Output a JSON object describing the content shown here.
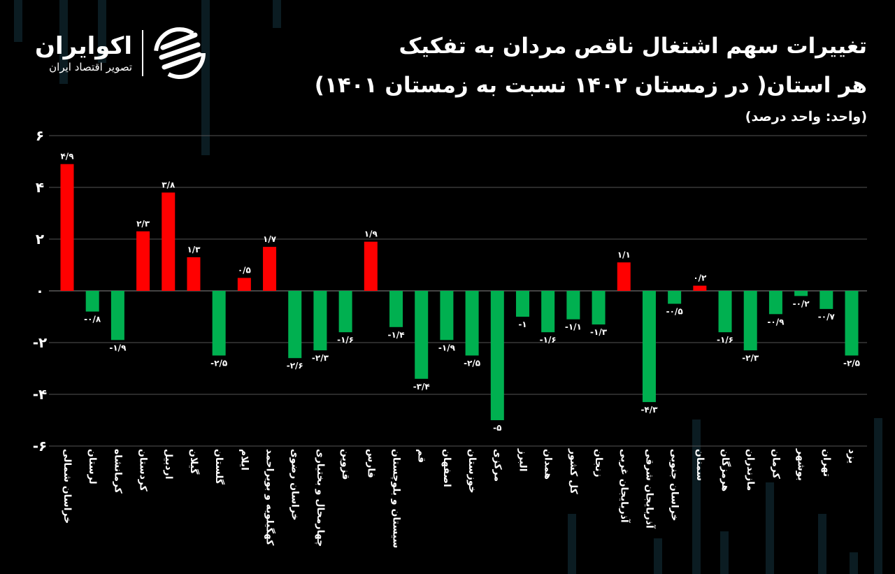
{
  "logo": {
    "name": "اکوایران",
    "tagline": "تصویر اقتصاد ایران"
  },
  "chart_data": {
    "type": "bar",
    "title_line1": "تغییرات سهم اشتغال ناقص مردان به تفکیک",
    "title_line2": "هر استان( در زمستان ۱۴۰۲ نسبت به زمستان ۱۴۰۱)",
    "unit": "(واحد: واحد درصد)",
    "ylim": [
      -6,
      6
    ],
    "yticks": [
      6,
      4,
      2,
      0,
      -2,
      -4,
      -6
    ],
    "ytick_labels": [
      "۶",
      "۴",
      "۲",
      "۰",
      "-۲",
      "-۴",
      "-۶"
    ],
    "grid": true,
    "colors": {
      "positive": "#ff0000",
      "negative": "#00b050"
    },
    "categories": [
      "خراسان شمالی",
      "لرستان",
      "کرمانشاه",
      "کردستان",
      "اردبیل",
      "گیلان",
      "گلستان",
      "ایلام",
      "کهگیلویه و بویراحمد",
      "خراسان رضوی",
      "چهارمحال و بختیاری",
      "قزوین",
      "فارس",
      "سیستان و بلوچستان",
      "قم",
      "اصفهان",
      "خوزستان",
      "مرکزی",
      "البرز",
      "همدان",
      "کل کشور",
      "زنجان",
      "آذربایجان غربی",
      "آذربایجان شرقی",
      "خراسان جنوبی",
      "سمنان",
      "هرمزگان",
      "مازندران",
      "کرمان",
      "بوشهر",
      "تهران",
      "یزد"
    ],
    "values": [
      4.9,
      -0.8,
      -1.9,
      2.3,
      3.8,
      1.3,
      -2.5,
      0.5,
      1.7,
      -2.6,
      -2.3,
      -1.6,
      1.9,
      -1.4,
      -3.4,
      -1.9,
      -2.5,
      -5,
      -1,
      -1.6,
      -1.1,
      -1.3,
      1.1,
      -4.3,
      -0.5,
      0.2,
      -1.6,
      -2.3,
      -0.9,
      -0.2,
      -0.7,
      -2.5
    ],
    "data_labels": [
      "۴/۹",
      "-۰/۸",
      "-۱/۹",
      "۲/۳",
      "۳/۸",
      "۱/۳",
      "-۲/۵",
      "۰/۵",
      "۱/۷",
      "-۲/۶",
      "-۲/۳",
      "-۱/۶",
      "۱/۹",
      "-۱/۴",
      "-۳/۴",
      "-۱/۹",
      "-۲/۵",
      "-۵",
      "-۱",
      "-۱/۶",
      "-۱/۱",
      "-۱/۳",
      "۱/۱",
      "-۴/۳",
      "-۰/۵",
      "۰/۲",
      "-۱/۶",
      "-۲/۳",
      "-۰/۹",
      "-۰/۲",
      "-۰/۷",
      "-۲/۵"
    ]
  }
}
